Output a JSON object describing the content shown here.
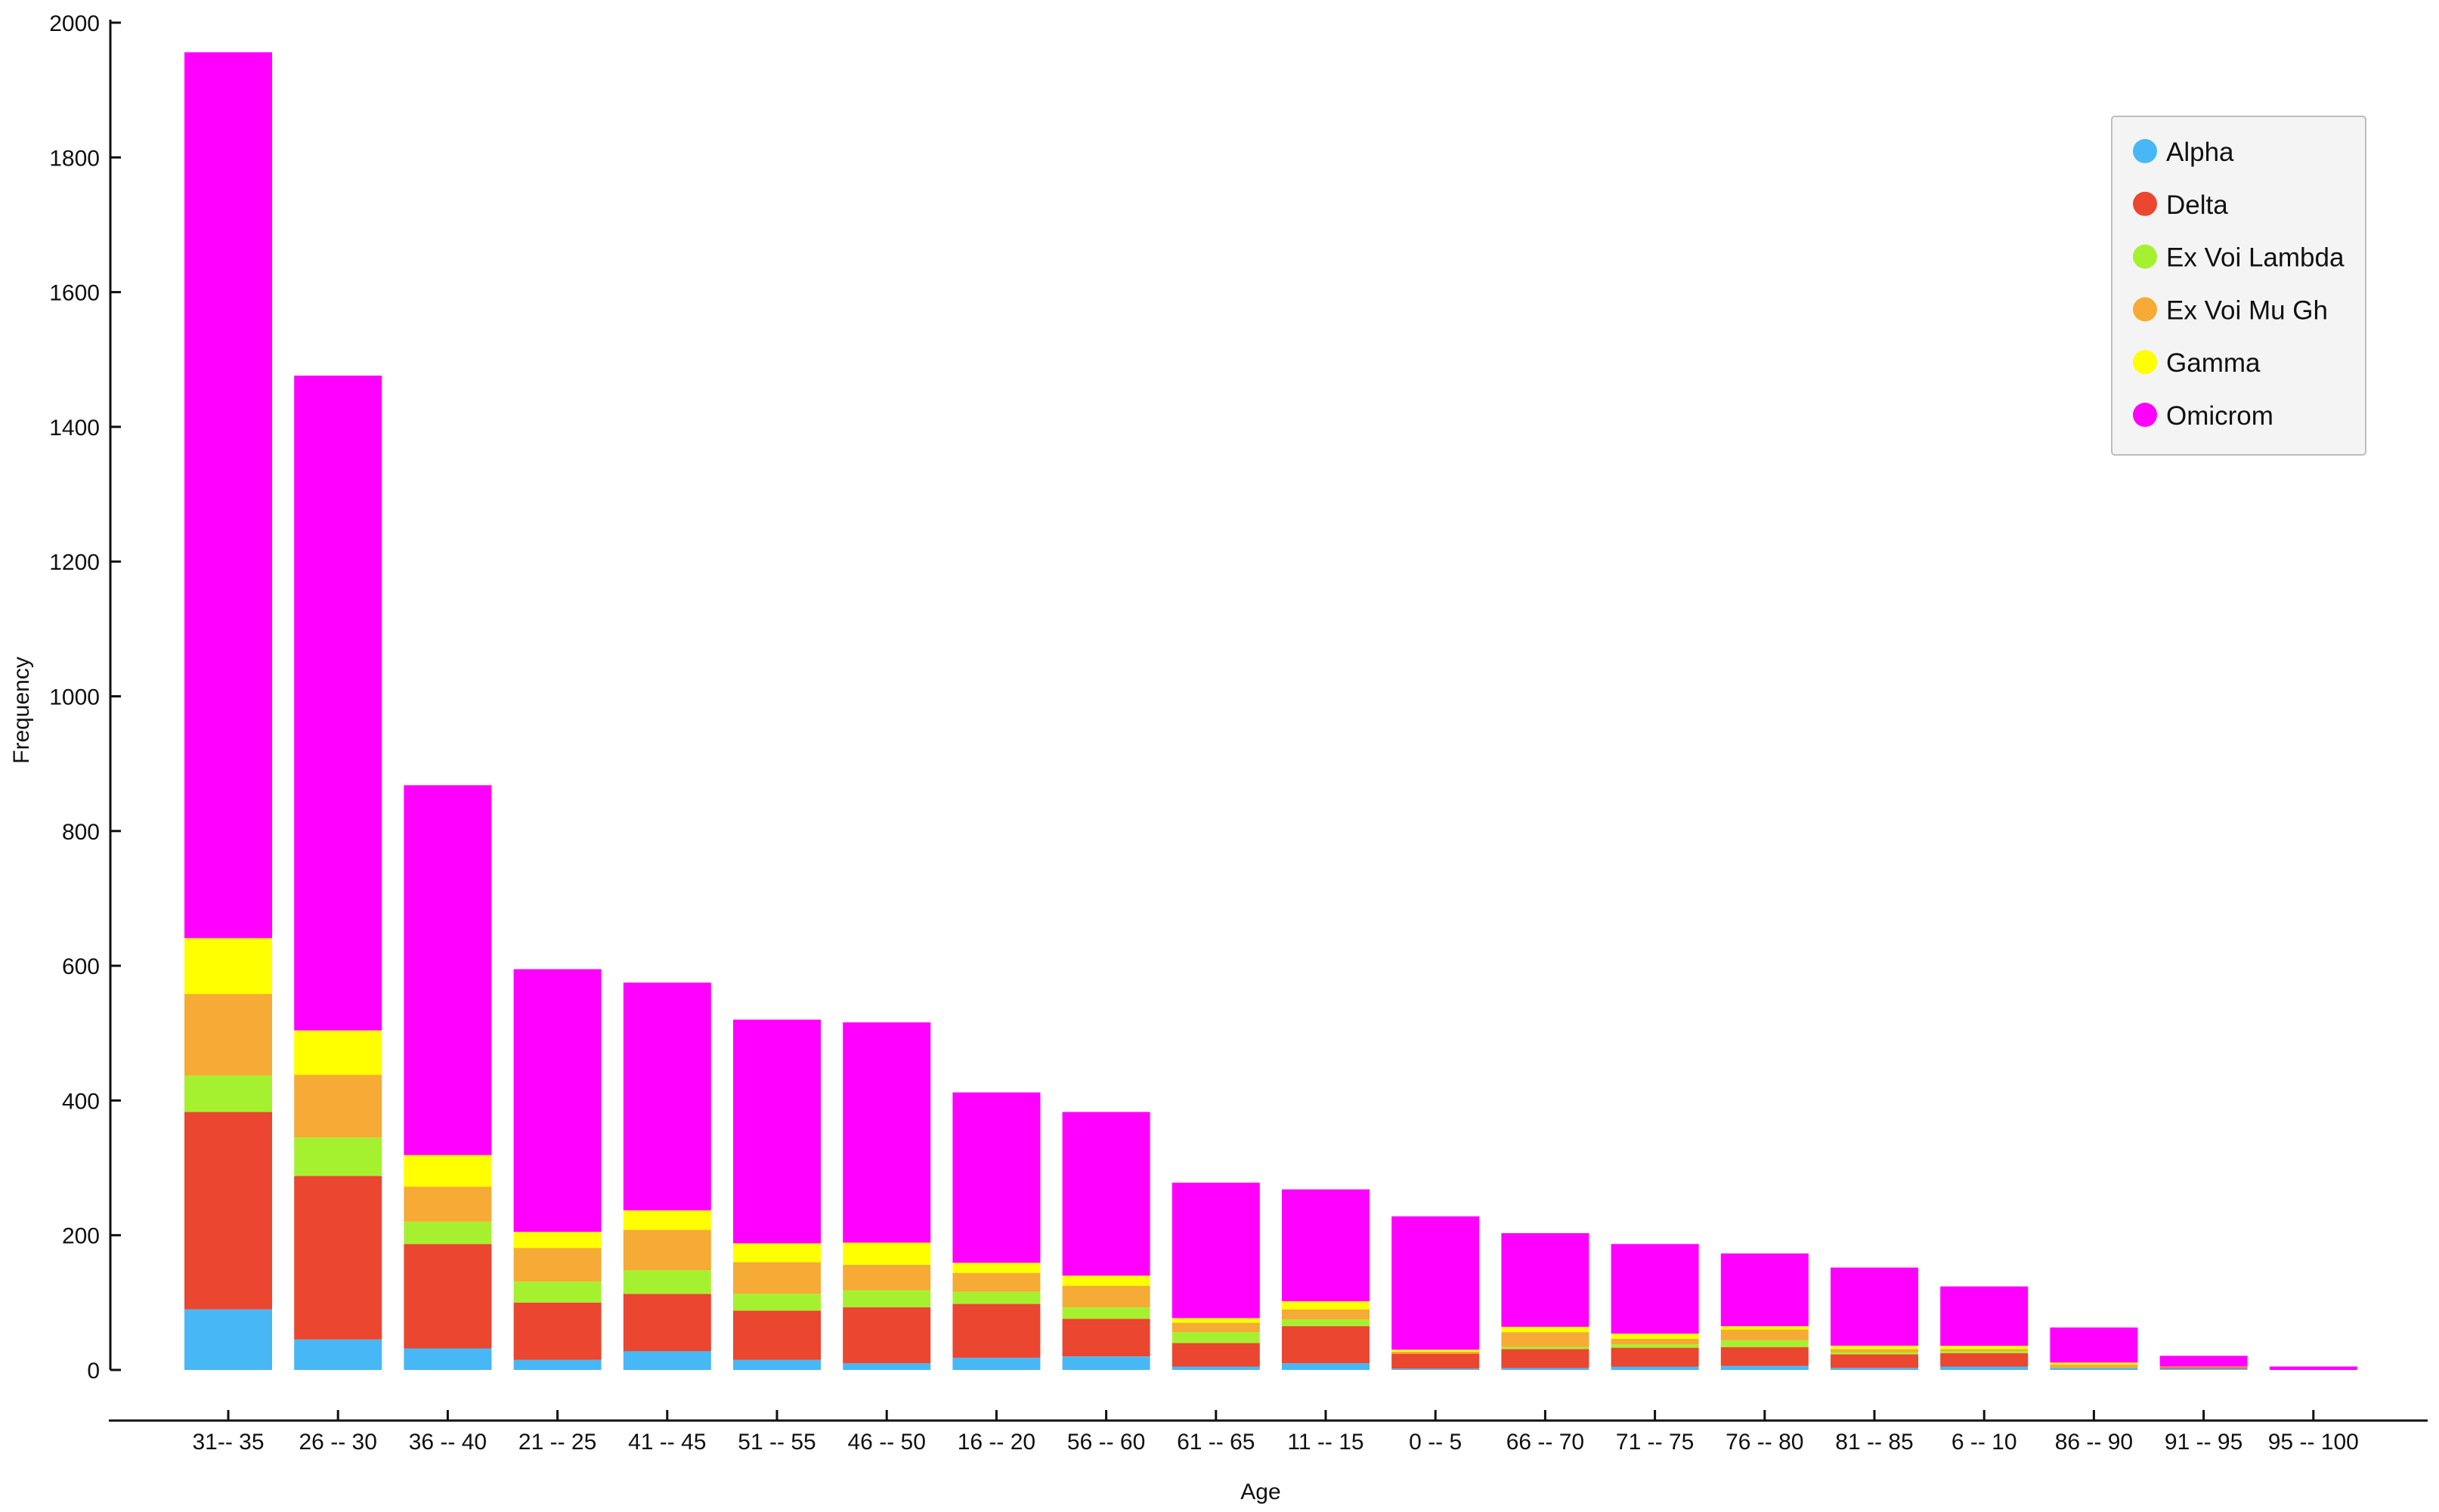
{
  "chart_data": {
    "type": "bar",
    "stacked": true,
    "xlabel": "Age",
    "ylabel": "Frequency",
    "ylim": [
      0,
      2000
    ],
    "yticks": [
      0,
      200,
      400,
      600,
      800,
      1000,
      1200,
      1400,
      1600,
      1800,
      2000
    ],
    "grid": false,
    "legend_position": "top-right",
    "categories": [
      "31-- 35",
      "26 -- 30",
      "36 -- 40",
      "21 -- 25",
      "41 -- 45",
      "51 -- 55",
      "46 -- 50",
      "16 -- 20",
      "56 -- 60",
      "61 -- 65",
      "11 -- 15",
      "0 -- 5",
      "66 -- 70",
      "71 -- 75",
      "76 -- 80",
      "81 -- 85",
      "6 -- 10",
      "86 -- 90",
      "91 -- 95",
      "95 -- 100"
    ],
    "series": [
      {
        "name": "Alpha",
        "color": "#47b8f5",
        "values": [
          90,
          45,
          32,
          15,
          28,
          15,
          10,
          18,
          20,
          5,
          10,
          2,
          3,
          5,
          6,
          3,
          5,
          3,
          2,
          0
        ]
      },
      {
        "name": "Delta",
        "color": "#ea4630",
        "values": [
          293,
          243,
          155,
          85,
          85,
          73,
          83,
          80,
          56,
          35,
          55,
          22,
          28,
          28,
          28,
          20,
          20,
          0,
          2,
          0
        ]
      },
      {
        "name": "Ex Voi Lambda",
        "color": "#a6f12f",
        "values": [
          54,
          57,
          33,
          31,
          35,
          25,
          25,
          18,
          17,
          16,
          10,
          0,
          3,
          5,
          10,
          3,
          3,
          0,
          0,
          0
        ]
      },
      {
        "name": "Ex Voi Mu Gh",
        "color": "#f5ab35",
        "values": [
          121,
          93,
          52,
          50,
          60,
          47,
          38,
          28,
          32,
          14,
          15,
          3,
          22,
          8,
          16,
          5,
          3,
          5,
          0,
          0
        ]
      },
      {
        "name": "Gamma",
        "color": "#ffff00",
        "values": [
          83,
          66,
          47,
          24,
          29,
          28,
          33,
          15,
          15,
          7,
          12,
          3,
          8,
          8,
          5,
          5,
          5,
          3,
          1,
          0
        ]
      },
      {
        "name": "Omicrom",
        "color": "#ff00ff",
        "values": [
          1315,
          972,
          549,
          390,
          338,
          332,
          327,
          253,
          243,
          201,
          166,
          198,
          139,
          133,
          108,
          116,
          88,
          52,
          16,
          5
        ]
      }
    ]
  }
}
